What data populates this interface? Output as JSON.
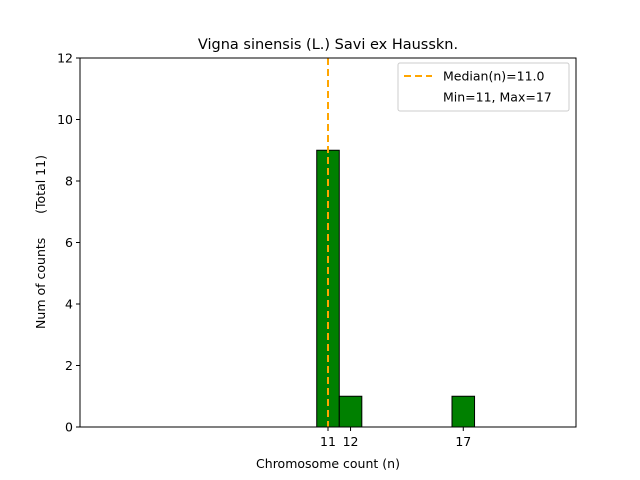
{
  "chart_data": {
    "type": "bar",
    "title": "Vigna sinensis (L.) Savi ex Hausskn.",
    "xlabel": "Chromosome count (n)",
    "ylabel": "Num of counts      (Total 11)",
    "xlim": [
      0,
      22
    ],
    "ylim": [
      0,
      12
    ],
    "yticks": [
      0,
      2,
      4,
      6,
      8,
      10,
      12
    ],
    "xticks": [
      11,
      12,
      17
    ],
    "bin_width": 1,
    "bars": [
      {
        "x": 11,
        "value": 9
      },
      {
        "x": 12,
        "value": 1
      },
      {
        "x": 17,
        "value": 1
      }
    ],
    "baseline_extent": [
      0,
      20.5
    ],
    "median_line": {
      "x": 11.0
    },
    "legend": {
      "position": "top-right",
      "entries": [
        {
          "label": "Median(n)=11.0",
          "style": "dashed-line"
        },
        {
          "label": "Min=11, Max=17",
          "style": "none"
        }
      ]
    },
    "colors": {
      "bar_fill": "#008000",
      "bar_edge": "#000000",
      "median_line": "#FFA500"
    }
  }
}
